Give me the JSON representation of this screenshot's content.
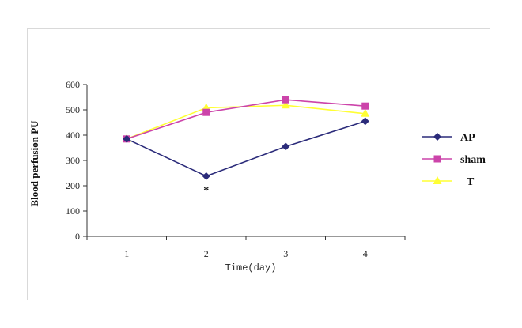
{
  "chart_data": {
    "type": "line",
    "title": "",
    "xlabel": "Time(day)",
    "ylabel": "Blood perfusion PU",
    "categories": [
      "1",
      "2",
      "3",
      "4"
    ],
    "ylim": [
      0,
      600
    ],
    "yticks": [
      "0",
      "100",
      "200",
      "300",
      "400",
      "500",
      "600"
    ],
    "grid": false,
    "legend_position": "right",
    "series": [
      {
        "name": "AP",
        "color": "#2b2b7a",
        "marker": "diamond",
        "values": [
          385,
          238,
          355,
          455
        ]
      },
      {
        "name": "sham",
        "color": "#cc44aa",
        "marker": "square",
        "values": [
          385,
          490,
          540,
          515
        ]
      },
      {
        "name": "T",
        "color": "#ffff33",
        "marker": "triangle",
        "values": [
          385,
          508,
          518,
          485
        ]
      }
    ],
    "annotations": [
      {
        "text": "*",
        "category": "2"
      }
    ]
  }
}
